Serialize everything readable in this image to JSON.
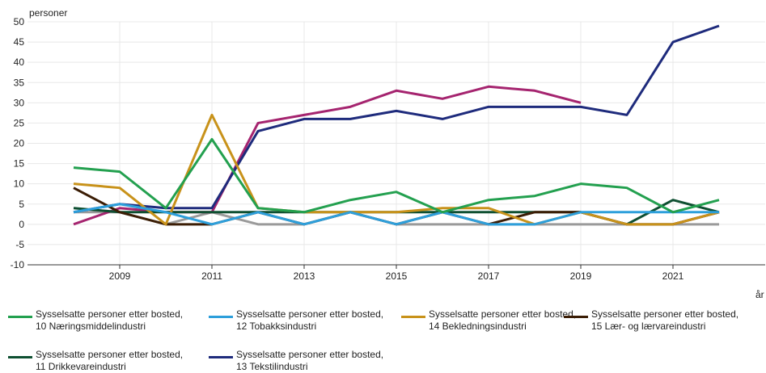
{
  "chart_data": {
    "type": "line",
    "ylabel": "personer",
    "xlabel": "år",
    "x": [
      2008,
      2009,
      2010,
      2011,
      2012,
      2013,
      2014,
      2015,
      2016,
      2017,
      2018,
      2019,
      2020,
      2021,
      2022
    ],
    "xlim": [
      2007,
      2023
    ],
    "xticks": [
      2009,
      2011,
      2013,
      2015,
      2017,
      2019,
      2021
    ],
    "ylim": [
      -10,
      50
    ],
    "yticks": [
      -10,
      -5,
      0,
      5,
      10,
      15,
      20,
      25,
      30,
      35,
      40,
      45,
      50
    ],
    "grid": true,
    "series": [
      {
        "name": "Sysselsatte personer etter bosted, 10 Næringsmiddelindustri",
        "color": "#23a04f",
        "values": [
          14,
          13,
          4,
          21,
          4,
          3,
          6,
          8,
          3,
          6,
          7,
          10,
          9,
          3,
          6
        ]
      },
      {
        "name": "Sysselsatte personer etter bosted, 12 Tobakksindustri",
        "color": "#2d9fdb",
        "values": [
          3,
          5,
          3,
          0,
          3,
          0,
          3,
          0,
          3,
          0,
          0,
          3,
          3,
          3,
          3
        ]
      },
      {
        "name": "Sysselsatte personer etter bosted, 14 Bekledningsindustri",
        "color": "#c8921a",
        "values": [
          10,
          9,
          0,
          27,
          4,
          3,
          3,
          3,
          4,
          4,
          0,
          3,
          0,
          0,
          3
        ]
      },
      {
        "name": "Sysselsatte personer etter bosted, 15 Lær- og lærvareindustri",
        "color": "#3b1d05",
        "values": [
          9,
          3,
          0,
          0,
          3,
          0,
          3,
          0,
          3,
          0,
          3,
          3,
          0,
          0,
          3
        ]
      },
      {
        "name": "Sysselsatte personer etter bosted, 11 Drikkevareindustri",
        "color": "#0e4f31",
        "values": [
          4,
          3,
          3,
          3,
          3,
          3,
          3,
          3,
          3,
          3,
          3,
          3,
          0,
          6,
          3
        ]
      },
      {
        "name": "Sysselsatte personer etter bosted, 13 Tekstilindustri",
        "color": "#1e2b7c",
        "values": [
          3,
          5,
          4,
          4,
          23,
          26,
          26,
          28,
          26,
          29,
          29,
          29,
          27,
          45,
          49
        ]
      },
      {
        "color": "#a5246f",
        "values": [
          0,
          4,
          3,
          3,
          25,
          27,
          29,
          33,
          31,
          34,
          33,
          30,
          null,
          0,
          3
        ]
      },
      {
        "color": "#9a9a9a",
        "values": [
          3,
          3,
          0,
          3,
          0,
          0,
          3,
          0,
          0,
          0,
          0,
          0,
          0,
          0,
          0
        ]
      }
    ]
  }
}
